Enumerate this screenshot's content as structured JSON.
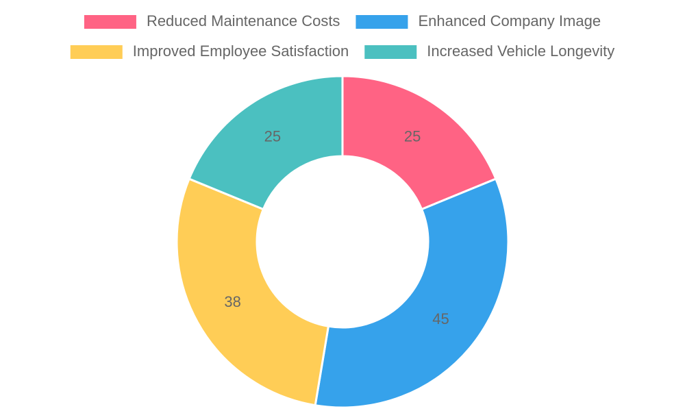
{
  "chart_data": {
    "type": "doughnut",
    "categories": [
      "Reduced Maintenance Costs",
      "Enhanced Company Image",
      "Improved Employee Satisfaction",
      "Increased Vehicle Longevity"
    ],
    "values": [
      25,
      45,
      38,
      25
    ],
    "colors": [
      "#ff6384",
      "#36a2eb",
      "#ffcd56",
      "#4bc0c0"
    ]
  }
}
